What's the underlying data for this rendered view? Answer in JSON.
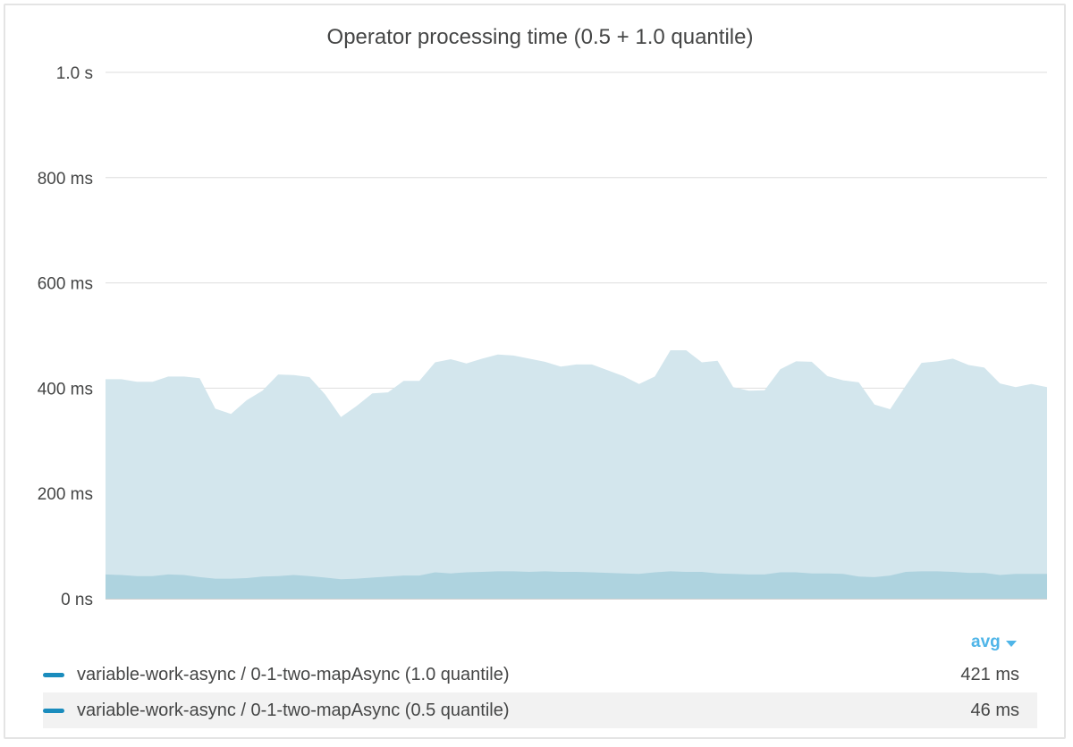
{
  "title": "Operator processing time (0.5 + 1.0 quantile)",
  "aggregation": {
    "label": "avg"
  },
  "colors": {
    "accent": "#4fb5e8",
    "swatch": "#1a8cbd",
    "fill_upper": "#d3e6ed",
    "fill_lower": "#aed3df",
    "grid": "#dedede"
  },
  "legend": [
    {
      "label": "variable-work-async / 0-1-two-mapAsync (1.0 quantile)",
      "value": "421 ms"
    },
    {
      "label": "variable-work-async / 0-1-two-mapAsync (0.5 quantile)",
      "value": "46 ms"
    }
  ],
  "chart_data": {
    "type": "area",
    "title": "Operator processing time (0.5 + 1.0 quantile)",
    "y_ticks": [
      "0 ns",
      "200 ms",
      "400 ms",
      "600 ms",
      "800 ms",
      "1.0 s"
    ],
    "ylim": [
      0,
      1000
    ],
    "y_unit": "ms",
    "grid": true,
    "series": [
      {
        "name": "variable-work-async / 0-1-two-mapAsync (1.0 quantile)",
        "values": [
          417,
          417,
          412,
          412,
          422,
          422,
          419,
          361,
          351,
          377,
          395,
          426,
          425,
          421,
          388,
          345,
          366,
          390,
          392,
          414,
          414,
          449,
          455,
          447,
          456,
          464,
          462,
          456,
          450,
          441,
          445,
          445,
          434,
          423,
          408,
          422,
          472,
          472,
          449,
          452,
          402,
          395,
          396,
          436,
          451,
          450,
          423,
          415,
          411,
          369,
          360,
          405,
          448,
          451,
          456,
          444,
          439,
          409,
          402,
          408,
          402
        ],
        "values_ms": true
      },
      {
        "name": "variable-work-async / 0-1-two-mapAsync (0.5 quantile)",
        "values": [
          46,
          45,
          43,
          43,
          46,
          45,
          41,
          38,
          38,
          39,
          42,
          43,
          45,
          43,
          40,
          37,
          38,
          40,
          42,
          44,
          44,
          50,
          48,
          50,
          51,
          52,
          52,
          51,
          52,
          51,
          51,
          50,
          49,
          48,
          47,
          50,
          52,
          51,
          51,
          48,
          47,
          46,
          46,
          50,
          50,
          48,
          48,
          47,
          42,
          41,
          44,
          51,
          52,
          52,
          51,
          49,
          49,
          45,
          47,
          47,
          47
        ],
        "values_ms": true
      }
    ]
  }
}
